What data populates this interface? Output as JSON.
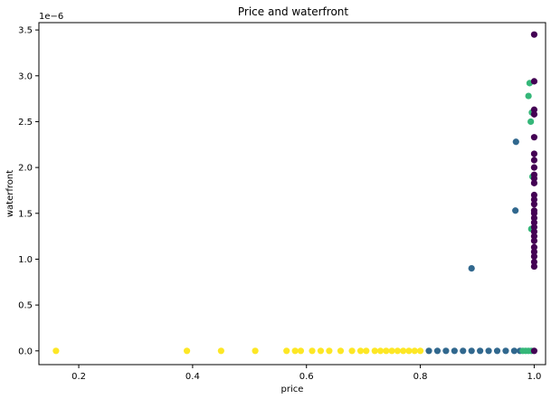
{
  "chart_data": {
    "type": "scatter",
    "title": "Price and waterfront",
    "xlabel": "price",
    "ylabel": "waterfront",
    "y_offset_text": "1e−6",
    "xlim": [
      0.13,
      1.02
    ],
    "ylim": [
      -0.15,
      3.58
    ],
    "y_scale_note": "y values in units of 1e-6",
    "grid": false,
    "x_ticks": [
      0.2,
      0.4,
      0.6,
      0.8,
      1.0
    ],
    "x_tick_labels": [
      "0.2",
      "0.4",
      "0.6",
      "0.8",
      "1.0"
    ],
    "y_ticks": [
      0.0,
      0.5,
      1.0,
      1.5,
      2.0,
      2.5,
      3.0,
      3.5
    ],
    "y_tick_labels": [
      "0.0",
      "0.5",
      "1.0",
      "1.5",
      "2.0",
      "2.5",
      "3.0",
      "3.5"
    ],
    "series": [
      {
        "color": "#fde725",
        "points": [
          [
            0.16,
            0
          ],
          [
            0.39,
            0
          ],
          [
            0.45,
            0
          ],
          [
            0.51,
            0
          ],
          [
            0.565,
            0
          ],
          [
            0.58,
            0
          ],
          [
            0.59,
            0
          ],
          [
            0.61,
            0
          ],
          [
            0.625,
            0
          ],
          [
            0.64,
            0
          ],
          [
            0.66,
            0
          ],
          [
            0.68,
            0
          ],
          [
            0.695,
            0
          ],
          [
            0.705,
            0
          ],
          [
            0.72,
            0
          ],
          [
            0.73,
            0
          ],
          [
            0.74,
            0
          ],
          [
            0.75,
            0
          ],
          [
            0.76,
            0
          ],
          [
            0.77,
            0
          ],
          [
            0.78,
            0
          ],
          [
            0.79,
            0
          ],
          [
            0.8,
            0
          ]
        ]
      },
      {
        "color": "#31688e",
        "points": [
          [
            0.815,
            0
          ],
          [
            0.83,
            0
          ],
          [
            0.845,
            0
          ],
          [
            0.86,
            0
          ],
          [
            0.875,
            0
          ],
          [
            0.89,
            0
          ],
          [
            0.905,
            0
          ],
          [
            0.92,
            0
          ],
          [
            0.935,
            0
          ],
          [
            0.95,
            0
          ],
          [
            0.965,
            0
          ],
          [
            0.975,
            0
          ],
          [
            0.89,
            0.9
          ],
          [
            0.967,
            1.53
          ],
          [
            0.968,
            2.28
          ]
        ]
      },
      {
        "color": "#35b779",
        "points": [
          [
            0.98,
            0
          ],
          [
            0.985,
            0
          ],
          [
            0.99,
            0
          ],
          [
            0.995,
            0
          ],
          [
            0.995,
            1.33
          ],
          [
            0.997,
            1.9
          ],
          [
            0.994,
            2.5
          ],
          [
            0.996,
            2.6
          ],
          [
            0.99,
            2.78
          ],
          [
            0.992,
            2.92
          ]
        ]
      },
      {
        "color": "#440154",
        "points": [
          [
            1.0,
            0
          ],
          [
            1.0,
            0.92
          ],
          [
            1.0,
            0.97
          ],
          [
            1.0,
            1.03
          ],
          [
            1.0,
            1.08
          ],
          [
            1.0,
            1.13
          ],
          [
            1.0,
            1.2
          ],
          [
            1.0,
            1.25
          ],
          [
            1.0,
            1.3
          ],
          [
            1.0,
            1.35
          ],
          [
            1.0,
            1.4
          ],
          [
            1.0,
            1.45
          ],
          [
            1.0,
            1.5
          ],
          [
            1.0,
            1.53
          ],
          [
            1.0,
            1.6
          ],
          [
            1.0,
            1.65
          ],
          [
            1.0,
            1.7
          ],
          [
            1.0,
            1.83
          ],
          [
            1.0,
            1.88
          ],
          [
            1.0,
            1.92
          ],
          [
            1.0,
            2.0
          ],
          [
            1.0,
            2.08
          ],
          [
            1.0,
            2.15
          ],
          [
            1.0,
            2.33
          ],
          [
            1.0,
            2.58
          ],
          [
            1.0,
            2.63
          ],
          [
            1.0,
            2.94
          ],
          [
            1.0,
            3.45
          ]
        ]
      }
    ]
  }
}
